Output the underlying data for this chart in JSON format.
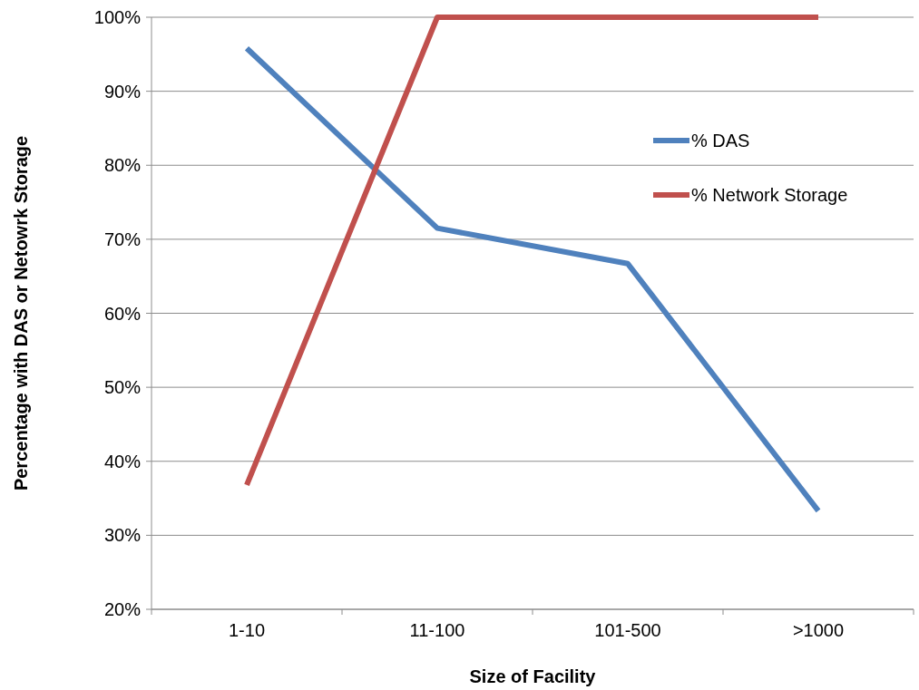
{
  "chart_data": {
    "type": "line",
    "xlabel": "Size of Facility",
    "ylabel": "Percentage with DAS or Netowrk Storage",
    "categories": [
      "1-10",
      "11-100",
      "101-500",
      ">1000"
    ],
    "series": [
      {
        "name": "% DAS",
        "color": "#4f81bd",
        "values": [
          95.8,
          71.5,
          66.7,
          33.3
        ]
      },
      {
        "name": "% Network Storage",
        "color": "#c0504d",
        "values": [
          36.8,
          100,
          100,
          100
        ]
      }
    ],
    "ylim": [
      20,
      100
    ],
    "yticks": [
      {
        "value": 20,
        "label": "20%"
      },
      {
        "value": 30,
        "label": "30%"
      },
      {
        "value": 40,
        "label": "40%"
      },
      {
        "value": 50,
        "label": "50%"
      },
      {
        "value": 60,
        "label": "60%"
      },
      {
        "value": 70,
        "label": "70%"
      },
      {
        "value": 80,
        "label": "80%"
      },
      {
        "value": 90,
        "label": "90%"
      },
      {
        "value": 100,
        "label": "100%"
      }
    ],
    "grid": "y",
    "legend": "top right",
    "marker": "none",
    "line_style": "solid"
  }
}
